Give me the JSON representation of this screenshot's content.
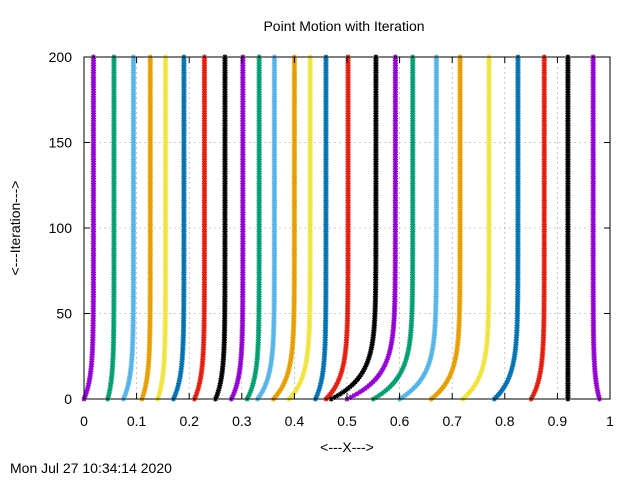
{
  "footer_timestamp": "Mon Jul 27 10:34:14 2020",
  "chart_data": {
    "type": "scatter",
    "title": "Point Motion with Iteration",
    "xlabel": "<---X--->",
    "ylabel": "<---Iteration--->",
    "xlim": [
      0,
      1
    ],
    "ylim": [
      0,
      200
    ],
    "x_ticks": [
      "0",
      "0.1",
      "0.2",
      "0.3",
      "0.4",
      "0.5",
      "0.6",
      "0.7",
      "0.8",
      "0.9",
      "1"
    ],
    "y_ticks": [
      "0",
      "50",
      "100",
      "150",
      "200"
    ],
    "grid": true,
    "marker": "asterisk",
    "series": [
      {
        "color": "#9400d3",
        "start": 0.0,
        "final": 0.018
      },
      {
        "color": "#009e73",
        "start": 0.045,
        "final": 0.057
      },
      {
        "color": "#56b4e9",
        "start": 0.075,
        "final": 0.094
      },
      {
        "color": "#e69f00",
        "start": 0.11,
        "final": 0.126
      },
      {
        "color": "#f0e442",
        "start": 0.14,
        "final": 0.155
      },
      {
        "color": "#0072b2",
        "start": 0.17,
        "final": 0.19
      },
      {
        "color": "#e51e10",
        "start": 0.21,
        "final": 0.229
      },
      {
        "color": "#000000",
        "start": 0.25,
        "final": 0.268
      },
      {
        "color": "#9400d3",
        "start": 0.28,
        "final": 0.302
      },
      {
        "color": "#009e73",
        "start": 0.31,
        "final": 0.333
      },
      {
        "color": "#56b4e9",
        "start": 0.33,
        "final": 0.362
      },
      {
        "color": "#e69f00",
        "start": 0.36,
        "final": 0.4
      },
      {
        "color": "#f0e442",
        "start": 0.39,
        "final": 0.43
      },
      {
        "color": "#0072b2",
        "start": 0.44,
        "final": 0.46
      },
      {
        "color": "#e51e10",
        "start": 0.46,
        "final": 0.502
      },
      {
        "color": "#000000",
        "start": 0.47,
        "final": 0.555
      },
      {
        "color": "#9400d3",
        "start": 0.5,
        "final": 0.592
      },
      {
        "color": "#009e73",
        "start": 0.55,
        "final": 0.625
      },
      {
        "color": "#56b4e9",
        "start": 0.6,
        "final": 0.67
      },
      {
        "color": "#e69f00",
        "start": 0.66,
        "final": 0.715
      },
      {
        "color": "#f0e442",
        "start": 0.72,
        "final": 0.77
      },
      {
        "color": "#0072b2",
        "start": 0.78,
        "final": 0.825
      },
      {
        "color": "#e51e10",
        "start": 0.85,
        "final": 0.875
      },
      {
        "color": "#000000",
        "start": 0.92,
        "final": 0.92
      },
      {
        "color": "#9400d3",
        "start": 0.98,
        "final": 0.968
      }
    ]
  }
}
